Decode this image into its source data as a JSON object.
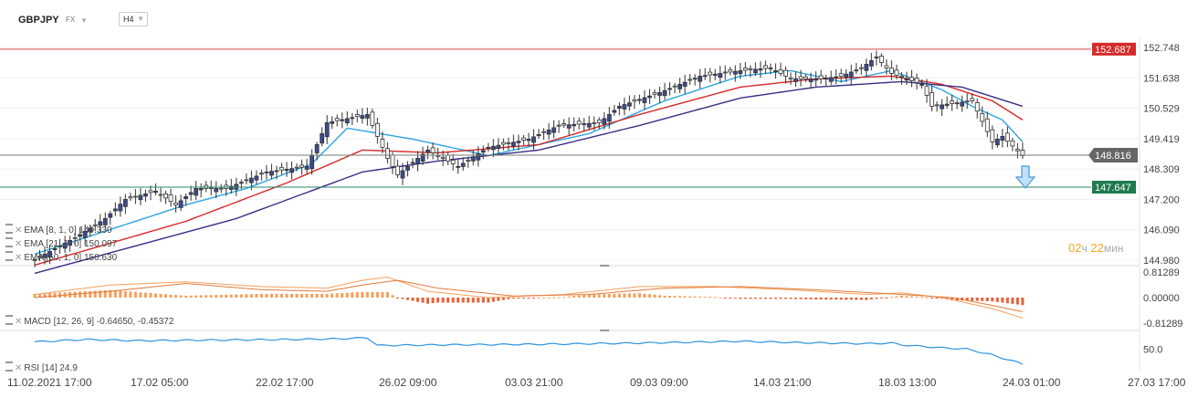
{
  "header": {
    "symbol": "GBPJPY",
    "market": "FX",
    "timeframe": "H4"
  },
  "indicators": {
    "ema1": {
      "label": "EMA [8, 1, 0] 149.330"
    },
    "ema2": {
      "label": "EMA [21, 1, 0] 150.097"
    },
    "ema3": {
      "label": "EMA [50, 1, 0] 150.630"
    },
    "macd": {
      "label": "MACD [12, 26, 9] -0.64650, -0.45372"
    },
    "rsi": {
      "label": "RSI [14] 24.9"
    }
  },
  "candle_timer": {
    "hours": "02",
    "hours_unit": "ч",
    "minutes": "22",
    "minutes_unit": "мин"
  },
  "colors": {
    "bull": "#3c4b8f",
    "bear": "#ffffff",
    "ema8": "#2ea5e0",
    "ema21": "#d62a2a",
    "ema50": "#3a2f85",
    "resistance": "#d64b4b",
    "support": "#2a8a6a",
    "current": "#7a7a7a",
    "macd_line": "#f5a05a",
    "signal_line": "#e07a3a",
    "hist_pos": "#f5a05a",
    "hist_neg": "#e8623a",
    "rsi_line": "#2e95e0",
    "arrow": "#4a9ad8"
  },
  "chart_data": {
    "type": "candlestick",
    "symbol": "GBPJPY",
    "timeframe": "H4",
    "price_ticks": [
      "152.748",
      "151.638",
      "150.529",
      "149.419",
      "148.309",
      "147.200",
      "146.090",
      "144.980"
    ],
    "x_ticks": [
      "11.02.2021  17:00",
      "17.02  05:00",
      "22.02  17:00",
      "26.02  09:00",
      "03.03  21:00",
      "09.03  09:00",
      "14.03  21:00",
      "18.03  13:00",
      "24.03  01:00",
      "27.03  17:00"
    ],
    "price_range": [
      144.98,
      152.748
    ],
    "levels": {
      "resistance": {
        "value": 152.687,
        "label": "152.687"
      },
      "current": {
        "value": 148.816,
        "label": "148.816"
      },
      "support": {
        "value": 147.647,
        "label": "147.647"
      }
    },
    "ema_series": [
      {
        "name": "EMA 8",
        "anchors": [
          [
            0,
            145.2
          ],
          [
            30,
            147.0
          ],
          [
            42,
            147.6
          ],
          [
            55,
            148.5
          ],
          [
            62,
            149.8
          ],
          [
            75,
            149.4
          ],
          [
            90,
            148.8
          ],
          [
            110,
            149.6
          ],
          [
            125,
            150.8
          ],
          [
            140,
            151.7
          ],
          [
            150,
            151.9
          ],
          [
            160,
            151.5
          ],
          [
            170,
            151.9
          ],
          [
            180,
            151.2
          ],
          [
            186,
            150.6
          ],
          [
            192,
            150.1
          ],
          [
            196,
            149.3
          ]
        ]
      },
      {
        "name": "EMA 21",
        "anchors": [
          [
            0,
            144.8
          ],
          [
            30,
            146.4
          ],
          [
            50,
            147.8
          ],
          [
            65,
            149.0
          ],
          [
            80,
            148.9
          ],
          [
            100,
            149.2
          ],
          [
            120,
            150.3
          ],
          [
            140,
            151.3
          ],
          [
            155,
            151.6
          ],
          [
            170,
            151.7
          ],
          [
            180,
            151.4
          ],
          [
            190,
            150.8
          ],
          [
            196,
            150.1
          ]
        ]
      },
      {
        "name": "EMA 50",
        "anchors": [
          [
            0,
            144.5
          ],
          [
            40,
            146.5
          ],
          [
            65,
            148.2
          ],
          [
            80,
            148.6
          ],
          [
            100,
            149.0
          ],
          [
            120,
            149.9
          ],
          [
            140,
            150.9
          ],
          [
            155,
            151.3
          ],
          [
            172,
            151.5
          ],
          [
            184,
            151.3
          ],
          [
            196,
            150.6
          ]
        ]
      }
    ],
    "macd": {
      "ticks": [
        "0.81289",
        "0.00000",
        "-0.81289"
      ],
      "range": [
        -0.81289,
        0.81289
      ],
      "line_anchors": [
        [
          0,
          0.1
        ],
        [
          15,
          0.4
        ],
        [
          30,
          0.5
        ],
        [
          45,
          0.35
        ],
        [
          58,
          0.3
        ],
        [
          65,
          0.55
        ],
        [
          70,
          0.65
        ],
        [
          78,
          0.2
        ],
        [
          90,
          0.0
        ],
        [
          105,
          0.1
        ],
        [
          120,
          0.35
        ],
        [
          135,
          0.35
        ],
        [
          150,
          0.25
        ],
        [
          165,
          0.1
        ],
        [
          172,
          0.15
        ],
        [
          180,
          0.0
        ],
        [
          190,
          -0.35
        ],
        [
          196,
          -0.65
        ]
      ],
      "signal_anchors": [
        [
          0,
          0.0
        ],
        [
          15,
          0.2
        ],
        [
          30,
          0.45
        ],
        [
          45,
          0.25
        ],
        [
          58,
          0.2
        ],
        [
          65,
          0.4
        ],
        [
          72,
          0.55
        ],
        [
          80,
          0.3
        ],
        [
          95,
          0.05
        ],
        [
          110,
          0.1
        ],
        [
          125,
          0.3
        ],
        [
          140,
          0.35
        ],
        [
          155,
          0.25
        ],
        [
          170,
          0.12
        ],
        [
          182,
          0.0
        ],
        [
          190,
          -0.25
        ],
        [
          196,
          -0.45
        ]
      ]
    },
    "rsi": {
      "ticks": [
        "50.0"
      ],
      "anchors": [
        [
          0,
          62
        ],
        [
          10,
          66
        ],
        [
          20,
          64
        ],
        [
          35,
          65
        ],
        [
          50,
          66
        ],
        [
          60,
          67
        ],
        [
          66,
          69
        ],
        [
          68,
          56
        ],
        [
          80,
          57
        ],
        [
          100,
          58
        ],
        [
          120,
          60
        ],
        [
          140,
          63
        ],
        [
          150,
          61
        ],
        [
          165,
          59
        ],
        [
          170,
          60
        ],
        [
          172,
          57
        ],
        [
          180,
          52
        ],
        [
          185,
          50
        ],
        [
          190,
          40
        ],
        [
          196,
          25
        ]
      ]
    },
    "candles": {
      "count": 197,
      "anchors": [
        [
          0,
          145.0
        ],
        [
          8,
          145.8
        ],
        [
          14,
          146.5
        ],
        [
          18,
          147.2
        ],
        [
          24,
          147.5
        ],
        [
          28,
          147.0
        ],
        [
          32,
          147.6
        ],
        [
          38,
          147.6
        ],
        [
          46,
          148.2
        ],
        [
          54,
          148.4
        ],
        [
          58,
          150.0
        ],
        [
          66,
          150.3
        ],
        [
          70,
          148.7
        ],
        [
          72,
          148.1
        ],
        [
          78,
          149.0
        ],
        [
          84,
          148.4
        ],
        [
          90,
          149.1
        ],
        [
          98,
          149.4
        ],
        [
          104,
          149.9
        ],
        [
          112,
          150.0
        ],
        [
          116,
          150.6
        ],
        [
          124,
          151.1
        ],
        [
          132,
          151.7
        ],
        [
          140,
          151.9
        ],
        [
          146,
          152.0
        ],
        [
          150,
          151.6
        ],
        [
          156,
          151.6
        ],
        [
          160,
          151.7
        ],
        [
          164,
          152.0
        ],
        [
          167,
          152.4
        ],
        [
          170,
          151.8
        ],
        [
          176,
          151.4
        ],
        [
          178,
          150.6
        ],
        [
          186,
          150.8
        ],
        [
          190,
          149.3
        ],
        [
          192,
          149.5
        ],
        [
          196,
          148.8
        ]
      ]
    }
  }
}
